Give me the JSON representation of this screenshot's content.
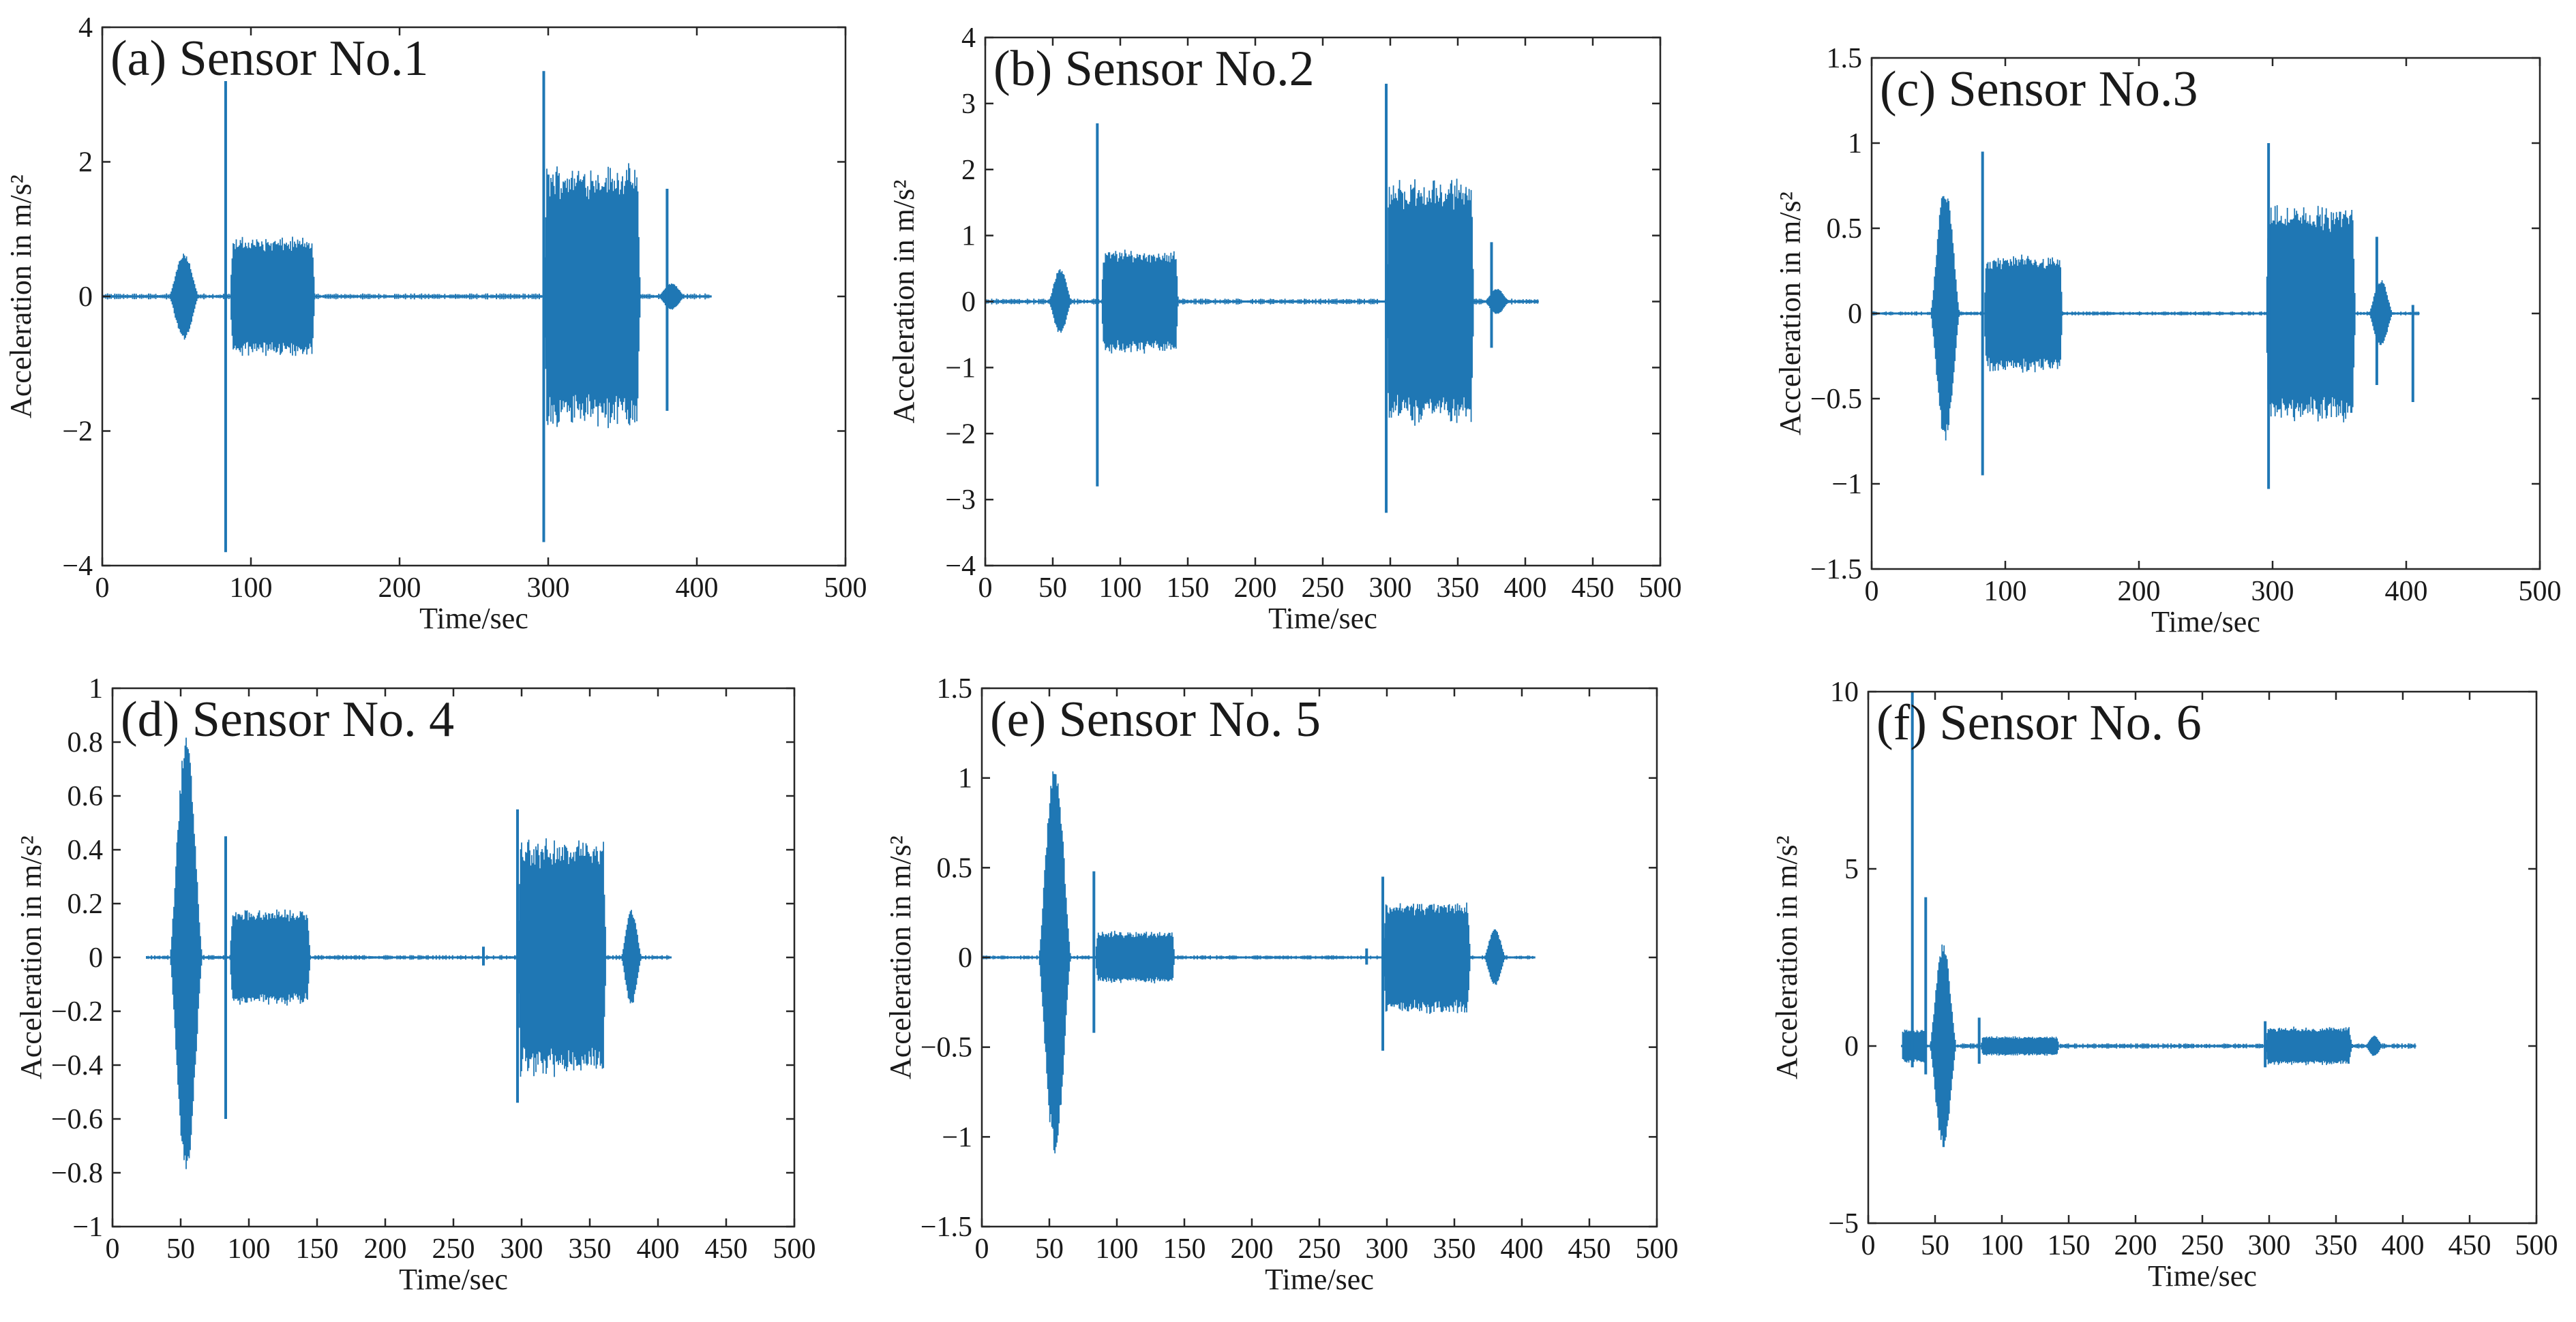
{
  "figure": {
    "line_color": "#1f77b4",
    "font_color": "#1a1a1a",
    "axis_color": "#262626"
  },
  "chart_data": [
    {
      "type": "line",
      "title": "(a) Sensor No.1",
      "xlabel": "Time/sec",
      "ylabel": "Acceleration in m/s²",
      "xlim": [
        0,
        500
      ],
      "ylim": [
        -4,
        4
      ],
      "xticks": [
        0,
        100,
        200,
        300,
        400,
        500
      ],
      "yticks": [
        -4,
        -2,
        0,
        2,
        4
      ],
      "ytick_labels": [
        "−4",
        "−2",
        "0",
        "2",
        "4"
      ],
      "signal": {
        "start": 0,
        "end": 410,
        "noise": 0.03
      },
      "bursts": [
        {
          "t0": 45,
          "t1": 65,
          "amp": 0.65,
          "shape": "spindle"
        },
        {
          "t0": 86,
          "t1": 143,
          "amp": 0.9,
          "shape": "block"
        },
        {
          "t0": 297,
          "t1": 362,
          "amp": 2.0,
          "shape": "block"
        },
        {
          "t0": 374,
          "t1": 392,
          "amp": 0.2,
          "shape": "spindle"
        }
      ],
      "spikes": [
        {
          "t": 83,
          "pos": 3.2,
          "neg": -3.8
        },
        {
          "t": 297,
          "pos": 3.35,
          "neg": -3.65
        },
        {
          "t": 380,
          "pos": 1.6,
          "neg": -1.7
        }
      ]
    },
    {
      "type": "line",
      "title": "(b) Sensor No.2",
      "xlabel": "Time/sec",
      "ylabel": "Acceleration in m/s²",
      "xlim": [
        0,
        500
      ],
      "ylim": [
        -4,
        4
      ],
      "xticks": [
        0,
        50,
        100,
        150,
        200,
        250,
        300,
        350,
        400,
        450,
        500
      ],
      "yticks": [
        -4,
        -3,
        -2,
        -1,
        0,
        1,
        2,
        3,
        4
      ],
      "ytick_labels": [
        "−4",
        "−3",
        "−2",
        "−1",
        "0",
        "1",
        "2",
        "3",
        "4"
      ],
      "signal": {
        "start": 0,
        "end": 410,
        "noise": 0.03
      },
      "bursts": [
        {
          "t0": 47,
          "t1": 64,
          "amp": 0.5,
          "shape": "spindle"
        },
        {
          "t0": 86,
          "t1": 143,
          "amp": 0.8,
          "shape": "block"
        },
        {
          "t0": 297,
          "t1": 362,
          "amp": 1.9,
          "shape": "block"
        },
        {
          "t0": 370,
          "t1": 388,
          "amp": 0.2,
          "shape": "spindle"
        }
      ],
      "spikes": [
        {
          "t": 83,
          "pos": 2.7,
          "neg": -2.8
        },
        {
          "t": 297,
          "pos": 3.3,
          "neg": -3.2
        },
        {
          "t": 375,
          "pos": 0.9,
          "neg": -0.7
        }
      ]
    },
    {
      "type": "line",
      "title": "(c) Sensor No.3",
      "xlabel": "Time/sec",
      "ylabel": "Acceleration in m/s²",
      "xlim": [
        0,
        500
      ],
      "ylim": [
        -1.5,
        1.5
      ],
      "xticks": [
        0,
        100,
        200,
        300,
        400,
        500
      ],
      "yticks": [
        -1.5,
        -1,
        -0.5,
        0,
        0.5,
        1,
        1.5
      ],
      "ytick_labels": [
        "−1.5",
        "−1",
        "−0.5",
        "0",
        "0.5",
        "1",
        "1.5"
      ],
      "signal": {
        "start": 0,
        "end": 410,
        "noise": 0.008
      },
      "bursts": [
        {
          "t0": 44,
          "t1": 66,
          "amp": 0.75,
          "shape": "spindle"
        },
        {
          "t0": 84,
          "t1": 143,
          "amp": 0.35,
          "shape": "block"
        },
        {
          "t0": 295,
          "t1": 362,
          "amp": 0.65,
          "shape": "block"
        },
        {
          "t0": 372,
          "t1": 390,
          "amp": 0.2,
          "shape": "spindle"
        }
      ],
      "spikes": [
        {
          "t": 83,
          "pos": 0.95,
          "neg": -0.95
        },
        {
          "t": 297,
          "pos": 1.0,
          "neg": -1.03
        },
        {
          "t": 378,
          "pos": 0.45,
          "neg": -0.42
        },
        {
          "t": 405,
          "pos": 0.05,
          "neg": -0.52
        }
      ]
    },
    {
      "type": "line",
      "title": "(d) Sensor No. 4",
      "xlabel": "Time/sec",
      "ylabel": "Acceleration in m/s²",
      "xlim": [
        0,
        500
      ],
      "ylim": [
        -1,
        1
      ],
      "xticks": [
        0,
        50,
        100,
        150,
        200,
        250,
        300,
        350,
        400,
        450,
        500
      ],
      "yticks": [
        -1,
        -0.8,
        -0.6,
        -0.4,
        -0.2,
        0,
        0.2,
        0.4,
        0.6,
        0.8,
        1
      ],
      "ytick_labels": [
        "−1",
        "−0.8",
        "−0.6",
        "−0.4",
        "−0.2",
        "0",
        "0.2",
        "0.4",
        "0.6",
        "0.8",
        "1"
      ],
      "signal": {
        "start": 25,
        "end": 410,
        "noise": 0.006
      },
      "bursts": [
        {
          "t0": 42,
          "t1": 66,
          "amp": 0.82,
          "shape": "spindle"
        },
        {
          "t0": 86,
          "t1": 145,
          "amp": 0.18,
          "shape": "block"
        },
        {
          "t0": 297,
          "t1": 362,
          "amp": 0.45,
          "shape": "block"
        },
        {
          "t0": 373,
          "t1": 388,
          "amp": 0.18,
          "shape": "spindle"
        }
      ],
      "spikes": [
        {
          "t": 83,
          "pos": 0.45,
          "neg": -0.6
        },
        {
          "t": 297,
          "pos": 0.55,
          "neg": -0.54
        },
        {
          "t": 272,
          "pos": 0.04,
          "neg": -0.03
        }
      ]
    },
    {
      "type": "line",
      "title": "(e) Sensor No. 5",
      "xlabel": "Time/sec",
      "ylabel": "Acceleration in m/s²",
      "xlim": [
        0,
        500
      ],
      "ylim": [
        -1.5,
        1.5
      ],
      "xticks": [
        0,
        50,
        100,
        150,
        200,
        250,
        300,
        350,
        400,
        450,
        500
      ],
      "yticks": [
        -1.5,
        -1,
        -0.5,
        0,
        0.5,
        1,
        1.5
      ],
      "ytick_labels": [
        "−1.5",
        "−1",
        "−0.5",
        "0",
        "0.5",
        "1",
        "1.5"
      ],
      "signal": {
        "start": 0,
        "end": 410,
        "noise": 0.008
      },
      "bursts": [
        {
          "t0": 42,
          "t1": 66,
          "amp": 1.1,
          "shape": "spindle"
        },
        {
          "t0": 84,
          "t1": 143,
          "amp": 0.15,
          "shape": "block"
        },
        {
          "t0": 297,
          "t1": 362,
          "amp": 0.32,
          "shape": "block"
        },
        {
          "t0": 372,
          "t1": 388,
          "amp": 0.16,
          "shape": "spindle"
        }
      ],
      "spikes": [
        {
          "t": 83,
          "pos": 0.48,
          "neg": -0.42
        },
        {
          "t": 297,
          "pos": 0.45,
          "neg": -0.52
        },
        {
          "t": 285,
          "pos": 0.05,
          "neg": -0.04
        }
      ]
    },
    {
      "type": "line",
      "title": "(f) Sensor No. 6",
      "xlabel": "Time/sec",
      "ylabel": "Acceleration in m/s²",
      "xlim": [
        0,
        500
      ],
      "ylim": [
        -5,
        10
      ],
      "xticks": [
        0,
        50,
        100,
        150,
        200,
        250,
        300,
        350,
        400,
        450,
        500
      ],
      "yticks": [
        -5,
        0,
        5,
        10
      ],
      "ytick_labels": [
        "−5",
        "0",
        "5",
        "10"
      ],
      "signal": {
        "start": 25,
        "end": 410,
        "noise": 0.05
      },
      "bursts": [
        {
          "t0": 25,
          "t1": 44,
          "amp": 0.5,
          "shape": "block"
        },
        {
          "t0": 46,
          "t1": 66,
          "amp": 2.9,
          "shape": "spindle"
        },
        {
          "t0": 84,
          "t1": 143,
          "amp": 0.28,
          "shape": "block"
        },
        {
          "t0": 297,
          "t1": 362,
          "amp": 0.55,
          "shape": "block"
        },
        {
          "t0": 372,
          "t1": 385,
          "amp": 0.3,
          "shape": "spindle"
        }
      ],
      "spikes": [
        {
          "t": 33,
          "pos": 10.0,
          "neg": -0.6
        },
        {
          "t": 43,
          "pos": 4.2,
          "neg": -0.8
        },
        {
          "t": 83,
          "pos": 0.8,
          "neg": -0.5
        },
        {
          "t": 297,
          "pos": 0.7,
          "neg": -0.6
        }
      ]
    }
  ]
}
